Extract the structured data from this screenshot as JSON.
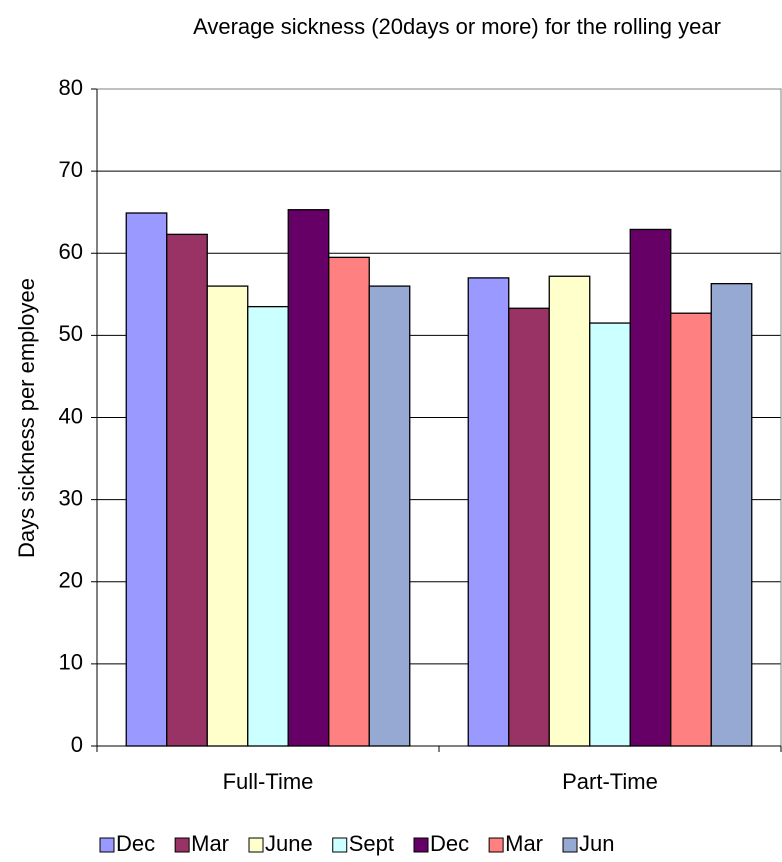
{
  "chart_data": {
    "type": "bar",
    "title": "Average sickness (20days or more) for the rolling year",
    "y_label": "Days sickness per employee",
    "categories": [
      "Full-Time",
      "Part-Time"
    ],
    "series": [
      {
        "name": "Dec",
        "color": "#9999ff",
        "values": [
          64.9,
          57.0
        ]
      },
      {
        "name": "Mar",
        "color": "#993366",
        "values": [
          62.3,
          53.3
        ]
      },
      {
        "name": "June",
        "color": "#ffffcc",
        "values": [
          56.0,
          57.2
        ]
      },
      {
        "name": "Sept",
        "color": "#ccffff",
        "values": [
          53.5,
          51.5
        ]
      },
      {
        "name": "Dec",
        "color": "#660066",
        "values": [
          65.3,
          62.9
        ]
      },
      {
        "name": "Mar",
        "color": "#ff8080",
        "values": [
          59.5,
          52.7
        ]
      },
      {
        "name": "Jun",
        "color": "#95a9d3",
        "values": [
          56.0,
          56.3
        ]
      }
    ],
    "ylim": [
      0,
      80
    ],
    "yticks": [
      0,
      10,
      20,
      30,
      40,
      50,
      60,
      70,
      80
    ],
    "grid": true,
    "legend": "bottom"
  }
}
